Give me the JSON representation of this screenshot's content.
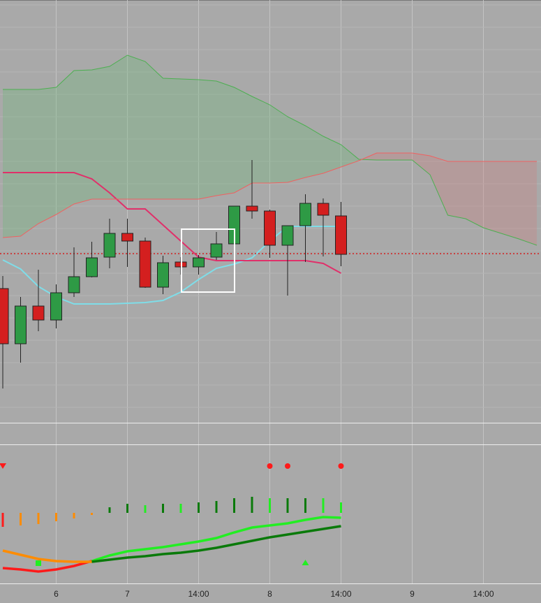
{
  "chart_data": [
    {
      "type": "candlestick",
      "xlim": [
        0,
        30
      ],
      "xticks": [
        {
          "value": 3,
          "label": "6"
        },
        {
          "value": 7,
          "label": "7"
        },
        {
          "value": 11,
          "label": "14:00"
        },
        {
          "value": 15,
          "label": "8"
        },
        {
          "value": 19,
          "label": "14:00"
        },
        {
          "value": 23,
          "label": "9"
        },
        {
          "value": 27,
          "label": "14:00"
        }
      ],
      "ylim": [
        0,
        605
      ],
      "grid": true,
      "up_color": "#2e9a45",
      "down_color": "#d41f1f",
      "open": [
        192,
        113,
        167,
        147,
        186,
        209,
        237,
        271,
        260,
        194,
        230,
        223,
        237,
        256,
        310,
        303,
        254,
        282,
        314,
        296
      ],
      "high": [
        210,
        180,
        219,
        198,
        251,
        259,
        292,
        292,
        265,
        239,
        237,
        240,
        273,
        310,
        376,
        305,
        282,
        327,
        321,
        316
      ],
      "low": [
        49,
        86,
        131,
        135,
        180,
        208,
        221,
        223,
        193,
        184,
        212,
        212,
        233,
        253,
        292,
        236,
        182,
        230,
        238,
        224
      ],
      "close": [
        113,
        167,
        147,
        186,
        209,
        236,
        271,
        260,
        194,
        229,
        223,
        236,
        256,
        310,
        303,
        254,
        282,
        314,
        297,
        241
      ],
      "price_line": 242,
      "price_line_color": "#d41f1f",
      "series": [
        {
          "color": "#7fdde8",
          "values": [
            233,
            220,
            195,
            180,
            170,
            170,
            170,
            171,
            172,
            175,
            187,
            205,
            221,
            227,
            236,
            260,
            281,
            281,
            281,
            281
          ]
        },
        {
          "color": "#e0306a",
          "values": [
            358,
            358,
            358,
            358,
            358,
            349,
            329,
            306,
            306,
            283,
            260,
            237,
            232,
            232,
            232,
            232,
            232,
            232,
            228,
            214
          ]
        },
        {
          "color": "#4caf50",
          "values": [
            477,
            477,
            477,
            480,
            504,
            505,
            510,
            526,
            517,
            493,
            492,
            491,
            489,
            480,
            467,
            455,
            438,
            425,
            410,
            398,
            377,
            376,
            376,
            376,
            355,
            297,
            292,
            279,
            271,
            263,
            254
          ]
        },
        {
          "color": "#f06060",
          "values": [
            265,
            267,
            285,
            298,
            313,
            320,
            320,
            320,
            320,
            320,
            320,
            320,
            325,
            329,
            343,
            343,
            344,
            351,
            357,
            366,
            375,
            386,
            386,
            386,
            382,
            374,
            374,
            374,
            374,
            374,
            374
          ]
        }
      ],
      "cloud_up_color": "#6fb77a",
      "cloud_down_color": "#c98080"
    },
    {
      "type": "bar",
      "ylim": [
        -101,
        97
      ],
      "values": [
        -20,
        -18,
        -16,
        -12,
        -8,
        -3,
        8,
        13,
        11,
        13,
        13,
        15,
        17,
        21,
        23,
        21,
        21,
        21,
        21,
        15
      ],
      "colors": [
        "#ff1a1a",
        "#ff8c00",
        "#ff8c00",
        "#ff8c00",
        "#ff8c00",
        "#ff8c00",
        "#0a7a0a",
        "#0a7a0a",
        "#22ee22",
        "#0a7a0a",
        "#22ee22",
        "#0a7a0a",
        "#0a7a0a",
        "#0a7a0a",
        "#0a7a0a",
        "#22ee22",
        "#0a7a0a",
        "#0a7a0a",
        "#22ee22",
        "#22ee22"
      ]
    },
    {
      "type": "line",
      "ylim": [
        0,
        198
      ],
      "series": [
        {
          "color": "#ff1a1a",
          "values": [
            22,
            20,
            17,
            20,
            25,
            32,
            null,
            null,
            null,
            null,
            null,
            null,
            null,
            null,
            null,
            null,
            null,
            null,
            null,
            null
          ]
        },
        {
          "color": "#22ee22",
          "values": [
            null,
            null,
            null,
            null,
            null,
            32,
            40,
            46,
            49,
            52,
            56,
            60,
            65,
            73,
            80,
            83,
            86,
            91,
            95,
            94
          ]
        },
        {
          "color": "#ff8c00",
          "values": [
            47,
            41,
            35,
            32,
            31,
            31,
            null,
            null,
            null,
            null,
            null,
            null,
            null,
            null,
            null,
            null,
            null,
            null,
            null,
            null
          ]
        },
        {
          "color": "#0a7a0a",
          "values": [
            null,
            null,
            null,
            null,
            null,
            31,
            34,
            37,
            39,
            42,
            44,
            47,
            51,
            56,
            61,
            66,
            70,
            74,
            78,
            82
          ]
        }
      ],
      "markers": [
        {
          "x": 0,
          "y": 168,
          "shape": "triangle-down",
          "color": "#ff1a1a"
        },
        {
          "x": 15,
          "y": 168,
          "shape": "circle",
          "color": "#ff1a1a"
        },
        {
          "x": 16,
          "y": 168,
          "shape": "circle",
          "color": "#ff1a1a"
        },
        {
          "x": 19,
          "y": 168,
          "shape": "circle",
          "color": "#ff1a1a"
        },
        {
          "x": 2,
          "y": 29,
          "shape": "square",
          "color": "#22ee22"
        },
        {
          "x": 17,
          "y": 30,
          "shape": "triangle-up",
          "color": "#22ee22"
        }
      ]
    }
  ]
}
